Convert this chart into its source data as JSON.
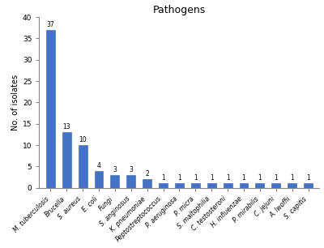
{
  "title": "Pathogens",
  "ylabel": "No. of isolates",
  "categories": [
    "M. tuberculosis",
    "Brucella",
    "S. aureus",
    "E. coli",
    "Fungi",
    "S. anginosus",
    "K. pneumoniae",
    "Peptostreptococcus",
    "P. aeruginosa",
    "P. micra",
    "S. maltophilia",
    "C. testosteroni",
    "H. influenzae",
    "P. mirabilis",
    "C. jejuni",
    "A. lwoffii",
    "S. capitis"
  ],
  "values": [
    37,
    13,
    10,
    4,
    3,
    3,
    2,
    1,
    1,
    1,
    1,
    1,
    1,
    1,
    1,
    1,
    1
  ],
  "bar_color": "#4472c4",
  "ylim": [
    0,
    40
  ],
  "yticks": [
    0,
    5,
    10,
    15,
    20,
    25,
    30,
    35,
    40
  ],
  "title_fontsize": 9,
  "ylabel_fontsize": 7,
  "xtick_fontsize": 5.5,
  "ytick_fontsize": 6.5,
  "value_fontsize": 5.5,
  "bar_width": 0.55,
  "background_color": "#ffffff"
}
